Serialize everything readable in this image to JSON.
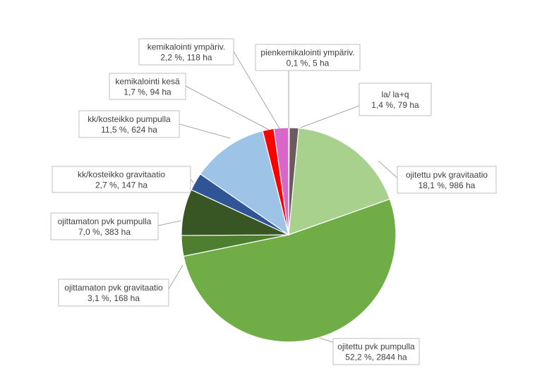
{
  "chart_data": {
    "type": "pie",
    "title": "",
    "slices": [
      {
        "name": "pienkemikalointi ympäriv.",
        "line2": "0,1 %, 5 ha",
        "percent": 0.1,
        "ha": 5,
        "color": "#a6a6a6"
      },
      {
        "name": "la/ la+q",
        "line2": "1,4 %, 79 ha",
        "percent": 1.4,
        "ha": 79,
        "color": "#6b5a5e"
      },
      {
        "name": "ojitettu pvk gravitaatio",
        "line2": "18,1 %, 986 ha",
        "percent": 18.1,
        "ha": 986,
        "color": "#a9d18e"
      },
      {
        "name": "ojitettu pvk pumpulla",
        "line2": "52,2 %, 2844 ha",
        "percent": 52.2,
        "ha": 2844,
        "color": "#70ad47"
      },
      {
        "name": "ojittamaton pvk gravitaatio",
        "line2": "3,1 %, 168 ha",
        "percent": 3.1,
        "ha": 168,
        "color": "#4e7f31"
      },
      {
        "name": "ojittamaton pvk pumpulla",
        "line2": "7,0 %, 383 ha",
        "percent": 7.0,
        "ha": 383,
        "color": "#375623"
      },
      {
        "name": "kk/kosteikko gravitaatio",
        "line2": "2,7 %, 147 ha",
        "percent": 2.7,
        "ha": 147,
        "color": "#2f5597"
      },
      {
        "name": "kk/kosteikko pumpulla",
        "line2": "11,5 %, 624 ha",
        "percent": 11.5,
        "ha": 624,
        "color": "#9dc3e6"
      },
      {
        "name": "kemikalointi kesä",
        "line2": "1,7 %, 94 ha",
        "percent": 1.7,
        "ha": 94,
        "color": "#ff0000"
      },
      {
        "name": "kemikalointi ympäriv.",
        "line2": "2,2 %, 118 ha",
        "percent": 2.2,
        "ha": 118,
        "color": "#d966c9"
      }
    ]
  }
}
